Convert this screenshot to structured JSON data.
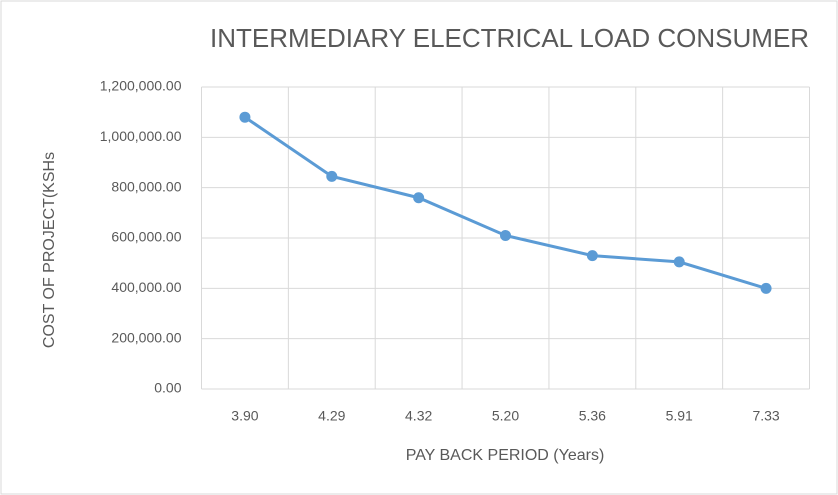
{
  "chart_data": {
    "type": "line",
    "title": "INTERMEDIARY ELECTRICAL LOAD CONSUMER",
    "x_label": "PAY BACK PERIOD (Years)",
    "y_label": "COST OF PROJECT(KSHs",
    "categories": [
      "3.90",
      "4.29",
      "4.32",
      "5.20",
      "5.36",
      "5.91",
      "7.33"
    ],
    "series": [
      {
        "name": "Cost",
        "color": "#5b9bd5",
        "values": [
          1080000,
          845000,
          760000,
          610000,
          530000,
          505000,
          400000
        ]
      }
    ],
    "ylim": [
      0,
      1200000
    ],
    "yticks": [
      {
        "value": 0,
        "label": "0.00"
      },
      {
        "value": 200000,
        "label": "200,000.00"
      },
      {
        "value": 400000,
        "label": "400,000.00"
      },
      {
        "value": 600000,
        "label": "600,000.00"
      },
      {
        "value": 800000,
        "label": "800,000.00"
      },
      {
        "value": 1000000,
        "label": "1,000,000.00"
      },
      {
        "value": 1200000,
        "label": "1,200,000.00"
      }
    ],
    "grid": true
  }
}
